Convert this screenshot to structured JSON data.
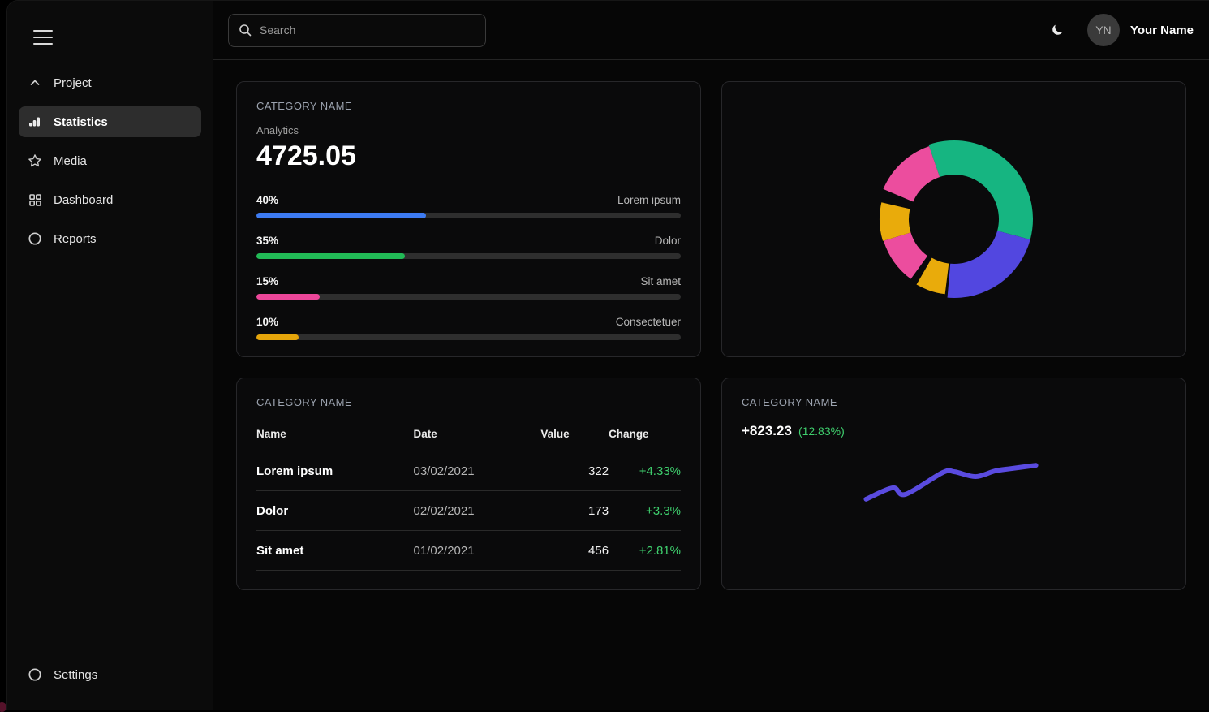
{
  "topbar": {
    "search_placeholder": "Search",
    "theme_icon": "moon-icon",
    "user": {
      "initials": "YN",
      "name": "Your Name"
    }
  },
  "sidebar": {
    "items": [
      {
        "label": "Project",
        "icon": "chevron-up-icon"
      },
      {
        "label": "Statistics",
        "icon": "bar-chart-icon",
        "active": true
      },
      {
        "label": "Media",
        "icon": "star-icon"
      },
      {
        "label": "Dashboard",
        "icon": "grid-icon"
      },
      {
        "label": "Reports",
        "icon": "circle-icon"
      }
    ],
    "footer_item": {
      "label": "Settings",
      "icon": "circle-icon"
    }
  },
  "cards": {
    "stats": {
      "title": "CATEGORY NAME",
      "subtitle": "Analytics",
      "value": "4725.05"
    },
    "donut": {},
    "table": {
      "title": "CATEGORY NAME",
      "columns": [
        "Name",
        "Date",
        "Value",
        "Change"
      ]
    },
    "line": {
      "title": "CATEGORY NAME",
      "value": "+823.23",
      "change": "(12.83%)"
    }
  },
  "colors": {
    "blue": "#3d7bf2",
    "green": "#21ba56",
    "pink": "#ec4699",
    "yellow": "#e5a50a",
    "donut_green": "#16b581",
    "donut_blue": "#5247e0",
    "donut_yellow": "#e9ab0b",
    "donut_pink": "#ec4d9e",
    "line": "#5a4be0",
    "positive": "#3fd06e"
  },
  "chart_data": [
    {
      "type": "bar",
      "title": "Analytics",
      "headline_value": 4725.05,
      "categories": [
        "Lorem ipsum",
        "Dolor",
        "Sit amet",
        "Consectetuer"
      ],
      "values": [
        40,
        35,
        15,
        10
      ],
      "unit": "%",
      "colors": [
        "#3d7bf2",
        "#21ba56",
        "#ec4699",
        "#e5a50a"
      ],
      "xlim": [
        0,
        100
      ]
    },
    {
      "type": "pie",
      "variant": "donut-variable-radius",
      "segments": [
        {
          "name": "green",
          "color": "#16b581",
          "start_deg": 341,
          "end_deg": 465,
          "outer_r": 97,
          "inner_r": 55,
          "share_pct": 34.4
        },
        {
          "name": "blue",
          "color": "#5247e0",
          "start_deg": 105,
          "end_deg": 185,
          "outer_r": 97,
          "inner_r": 55,
          "share_pct": 22.2
        },
        {
          "name": "yellow-1",
          "color": "#e9ab0b",
          "start_deg": 187,
          "end_deg": 210,
          "outer_r": 93,
          "inner_r": 55,
          "share_pct": 6.4
        },
        {
          "name": "pink-1",
          "color": "#ec4d9e",
          "start_deg": 216,
          "end_deg": 253,
          "outer_r": 91,
          "inner_r": 56,
          "share_pct": 10.3
        },
        {
          "name": "yellow-2",
          "color": "#e9ab0b",
          "start_deg": 253,
          "end_deg": 283,
          "outer_r": 92,
          "inner_r": 56,
          "share_pct": 8.3
        },
        {
          "name": "pink-2",
          "color": "#ec4d9e",
          "start_deg": 293,
          "end_deg": 341,
          "outer_r": 95,
          "inner_r": 55,
          "share_pct": 13.3
        }
      ]
    },
    {
      "type": "table",
      "columns": [
        "Name",
        "Date",
        "Value",
        "Change"
      ],
      "rows": [
        {
          "name": "Lorem ipsum",
          "date": "03/02/2021",
          "value": "322",
          "change": "+4.33%"
        },
        {
          "name": "Dolor",
          "date": "02/02/2021",
          "value": "173",
          "change": "+3.3%"
        },
        {
          "name": "Sit amet",
          "date": "01/02/2021",
          "value": "456",
          "change": "+2.81%"
        }
      ]
    },
    {
      "type": "line",
      "headline_value": "+823.23",
      "headline_change": "(12.83%)",
      "series": [
        {
          "name": "trend",
          "color": "#5a4be0",
          "points": [
            [
              179,
              150
            ],
            [
              212,
              136
            ],
            [
              228,
              144
            ],
            [
              274,
              117
            ],
            [
              289,
              116
            ],
            [
              315,
              122
            ],
            [
              339,
              115
            ],
            [
              359,
              112
            ],
            [
              390,
              108
            ]
          ]
        }
      ],
      "grid": false,
      "legend": false
    }
  ]
}
